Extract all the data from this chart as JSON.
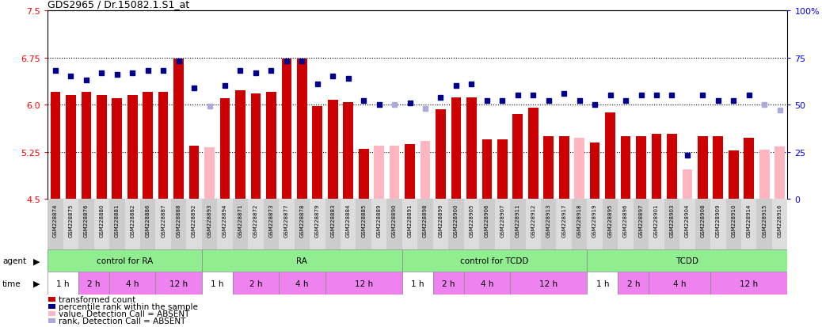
{
  "title": "GDS2965 / Dr.15082.1.S1_at",
  "ylim_left": [
    4.5,
    7.5
  ],
  "ylim_right": [
    0,
    100
  ],
  "yticks_left": [
    4.5,
    5.25,
    6.0,
    6.75,
    7.5
  ],
  "yticks_right": [
    0,
    25,
    50,
    75,
    100
  ],
  "hlines": [
    5.25,
    6.0,
    6.75
  ],
  "bar_bottom": 4.5,
  "samples": [
    "GSM228874",
    "GSM228875",
    "GSM228876",
    "GSM228880",
    "GSM228881",
    "GSM228882",
    "GSM228886",
    "GSM228887",
    "GSM228888",
    "GSM228892",
    "GSM228893",
    "GSM228894",
    "GSM228871",
    "GSM228872",
    "GSM228873",
    "GSM228877",
    "GSM228878",
    "GSM228879",
    "GSM228883",
    "GSM228884",
    "GSM228885",
    "GSM228889",
    "GSM228890",
    "GSM228891",
    "GSM228898",
    "GSM228899",
    "GSM228900",
    "GSM228905",
    "GSM228906",
    "GSM228907",
    "GSM228911",
    "GSM228912",
    "GSM228913",
    "GSM228917",
    "GSM228918",
    "GSM228919",
    "GSM228895",
    "GSM228896",
    "GSM228897",
    "GSM228901",
    "GSM228903",
    "GSM228904",
    "GSM228908",
    "GSM228909",
    "GSM228910",
    "GSM228914",
    "GSM228915",
    "GSM228916"
  ],
  "bar_values": [
    6.2,
    6.15,
    6.2,
    6.15,
    6.1,
    6.15,
    6.2,
    6.2,
    6.73,
    5.35,
    5.32,
    6.1,
    6.23,
    6.18,
    6.2,
    6.73,
    6.73,
    5.98,
    6.08,
    6.04,
    5.3,
    5.35,
    5.35,
    5.37,
    5.42,
    5.93,
    6.12,
    6.12,
    5.45,
    5.45,
    5.85,
    5.95,
    5.5,
    5.5,
    5.47,
    5.4,
    5.87,
    5.5,
    5.5,
    5.53,
    5.53,
    4.97,
    5.5,
    5.5,
    5.27,
    5.47,
    5.28,
    5.33
  ],
  "bar_absent": [
    false,
    false,
    false,
    false,
    false,
    false,
    false,
    false,
    false,
    false,
    true,
    false,
    false,
    false,
    false,
    false,
    false,
    false,
    false,
    false,
    false,
    true,
    true,
    false,
    true,
    false,
    false,
    false,
    false,
    false,
    false,
    false,
    false,
    false,
    true,
    false,
    false,
    false,
    false,
    false,
    false,
    true,
    false,
    false,
    false,
    false,
    true,
    true
  ],
  "rank_values": [
    68,
    65,
    63,
    67,
    66,
    67,
    68,
    68,
    73,
    59,
    49,
    60,
    68,
    67,
    68,
    73,
    73,
    61,
    65,
    64,
    52,
    50,
    50,
    51,
    48,
    54,
    60,
    61,
    52,
    52,
    55,
    55,
    52,
    56,
    52,
    50,
    55,
    52,
    55,
    55,
    55,
    23,
    55,
    52,
    52,
    55,
    50,
    47
  ],
  "rank_absent": [
    false,
    false,
    false,
    false,
    false,
    false,
    false,
    false,
    false,
    false,
    true,
    false,
    false,
    false,
    false,
    false,
    false,
    false,
    false,
    false,
    false,
    false,
    true,
    false,
    true,
    false,
    false,
    false,
    false,
    false,
    false,
    false,
    false,
    false,
    false,
    false,
    false,
    false,
    false,
    false,
    false,
    false,
    false,
    false,
    false,
    false,
    true,
    true
  ],
  "bar_color": "#cc0000",
  "bar_absent_color": "#ffb6c1",
  "rank_color": "#00008b",
  "rank_absent_color": "#aaaadd",
  "agent_groups": [
    {
      "label": "control for RA",
      "start": 0,
      "end": 9
    },
    {
      "label": "RA",
      "start": 10,
      "end": 22
    },
    {
      "label": "control for TCDD",
      "start": 23,
      "end": 34
    },
    {
      "label": "TCDD",
      "start": 35,
      "end": 47
    }
  ],
  "agent_color": "#90EE90",
  "time_groups": [
    {
      "label": "1 h",
      "start": 0,
      "end": 1,
      "color": "#ffffff"
    },
    {
      "label": "2 h",
      "start": 2,
      "end": 3,
      "color": "#ee82ee"
    },
    {
      "label": "4 h",
      "start": 4,
      "end": 6,
      "color": "#ee82ee"
    },
    {
      "label": "12 h",
      "start": 7,
      "end": 9,
      "color": "#ee82ee"
    },
    {
      "label": "1 h",
      "start": 10,
      "end": 11,
      "color": "#ffffff"
    },
    {
      "label": "2 h",
      "start": 12,
      "end": 14,
      "color": "#ee82ee"
    },
    {
      "label": "4 h",
      "start": 15,
      "end": 17,
      "color": "#ee82ee"
    },
    {
      "label": "12 h",
      "start": 18,
      "end": 22,
      "color": "#ee82ee"
    },
    {
      "label": "1 h",
      "start": 23,
      "end": 24,
      "color": "#ffffff"
    },
    {
      "label": "2 h",
      "start": 25,
      "end": 26,
      "color": "#ee82ee"
    },
    {
      "label": "4 h",
      "start": 27,
      "end": 29,
      "color": "#ee82ee"
    },
    {
      "label": "12 h",
      "start": 30,
      "end": 34,
      "color": "#ee82ee"
    },
    {
      "label": "1 h",
      "start": 35,
      "end": 36,
      "color": "#ffffff"
    },
    {
      "label": "2 h",
      "start": 37,
      "end": 38,
      "color": "#ee82ee"
    },
    {
      "label": "4 h",
      "start": 39,
      "end": 42,
      "color": "#ee82ee"
    },
    {
      "label": "12 h",
      "start": 43,
      "end": 47,
      "color": "#ee82ee"
    }
  ],
  "legend_items": [
    {
      "color": "#cc0000",
      "label": "transformed count"
    },
    {
      "color": "#00008b",
      "label": "percentile rank within the sample"
    },
    {
      "color": "#ffb6c1",
      "label": "value, Detection Call = ABSENT"
    },
    {
      "color": "#aaaadd",
      "label": "rank, Detection Call = ABSENT"
    }
  ]
}
